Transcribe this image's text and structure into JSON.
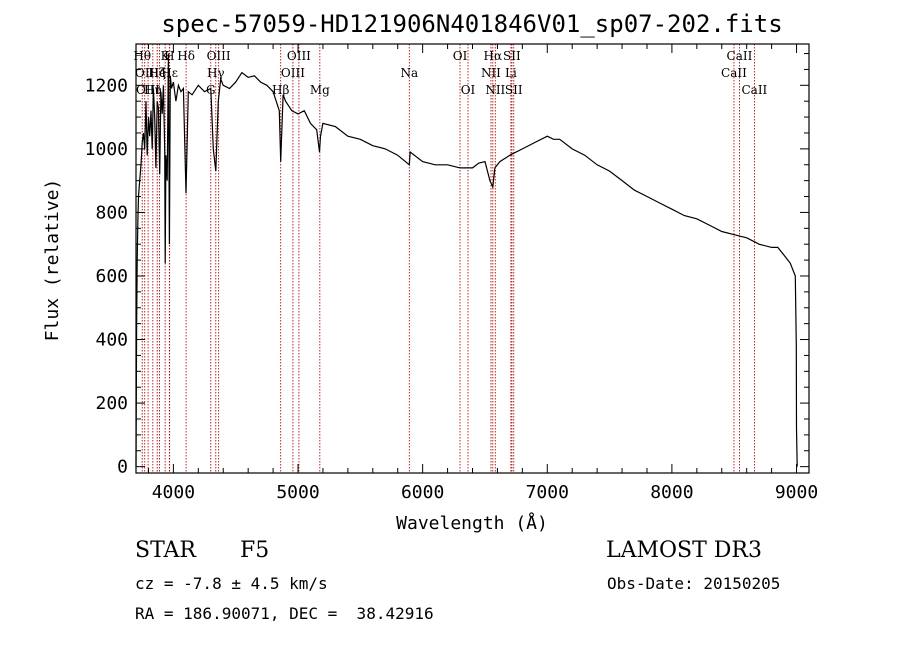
{
  "chart_data": {
    "type": "line",
    "title": "spec-57059-HD121906N401846V01_sp07-202.fits",
    "xlabel": "Wavelength (Å)",
    "ylabel": "Flux (relative)",
    "xlim": [
      3700,
      9100
    ],
    "ylim": [
      -20,
      1330
    ],
    "xticks": [
      4000,
      5000,
      6000,
      7000,
      8000,
      9000
    ],
    "yticks": [
      0,
      200,
      400,
      600,
      800,
      1000,
      1200
    ],
    "series": [
      {
        "name": "spectrum",
        "x": [
          3700,
          3705,
          3710,
          3715,
          3720,
          3730,
          3740,
          3750,
          3760,
          3770,
          3780,
          3790,
          3800,
          3810,
          3820,
          3830,
          3840,
          3850,
          3860,
          3870,
          3880,
          3890,
          3900,
          3910,
          3920,
          3930,
          3934,
          3940,
          3950,
          3960,
          3968,
          3975,
          3985,
          4000,
          4020,
          4040,
          4060,
          4080,
          4101,
          4120,
          4150,
          4200,
          4250,
          4300,
          4320,
          4340,
          4360,
          4380,
          4400,
          4450,
          4500,
          4550,
          4600,
          4650,
          4700,
          4750,
          4800,
          4850,
          4861,
          4880,
          4900,
          4950,
          5000,
          5050,
          5100,
          5150,
          5172,
          5180,
          5200,
          5300,
          5400,
          5500,
          5600,
          5700,
          5800,
          5893,
          5900,
          6000,
          6100,
          6200,
          6300,
          6400,
          6450,
          6500,
          6540,
          6563,
          6580,
          6620,
          6700,
          6800,
          6900,
          7000,
          7050,
          7100,
          7200,
          7300,
          7400,
          7500,
          7600,
          7700,
          7800,
          7900,
          8000,
          8100,
          8200,
          8300,
          8400,
          8500,
          8600,
          8700,
          8800,
          8850,
          8900,
          8950,
          8990,
          8998,
          9000,
          9005
        ],
        "y": [
          0,
          430,
          650,
          780,
          850,
          900,
          950,
          1020,
          1050,
          1000,
          1150,
          980,
          1100,
          1040,
          1120,
          1000,
          1190,
          1100,
          940,
          1150,
          1130,
          920,
          1180,
          1110,
          1200,
          1000,
          640,
          980,
          900,
          1300,
          700,
          1230,
          1190,
          1210,
          1150,
          1200,
          1180,
          1190,
          860,
          1180,
          1170,
          1200,
          1180,
          1190,
          1000,
          930,
          1150,
          1220,
          1200,
          1190,
          1210,
          1240,
          1225,
          1230,
          1210,
          1200,
          1180,
          1120,
          960,
          1170,
          1150,
          1120,
          1110,
          1120,
          1080,
          1060,
          990,
          1040,
          1080,
          1070,
          1040,
          1030,
          1010,
          1000,
          980,
          950,
          990,
          960,
          950,
          950,
          940,
          940,
          955,
          960,
          900,
          880,
          940,
          960,
          980,
          1000,
          1020,
          1040,
          1030,
          1030,
          1000,
          980,
          950,
          930,
          900,
          870,
          850,
          830,
          810,
          790,
          780,
          760,
          740,
          730,
          720,
          700,
          690,
          690,
          665,
          640,
          600,
          380,
          120,
          0
        ]
      }
    ],
    "line_markers": [
      {
        "wl": 3750,
        "label": "Hθ",
        "row": 0
      },
      {
        "wl": 3770,
        "label": "OII",
        "row": 1
      },
      {
        "wl": 3797,
        "label": "OIII",
        "row": 2
      },
      {
        "wl": 3835,
        "label": "Hη",
        "row": 2
      },
      {
        "wl": 3870,
        "label": "Hζ",
        "row": 1
      },
      {
        "wl": 3889,
        "label": "HeI",
        "row": 1
      },
      {
        "wl": 3934,
        "label": "K",
        "row": 0
      },
      {
        "wl": 3968,
        "label": "H",
        "row": 0
      },
      {
        "wl": 3970,
        "label": "Hε",
        "row": 1
      },
      {
        "wl": 4102,
        "label": "Hδ",
        "row": 0
      },
      {
        "wl": 4300,
        "label": "G",
        "row": 2
      },
      {
        "wl": 4340,
        "label": "Hγ",
        "row": 1
      },
      {
        "wl": 4363,
        "label": "OIII",
        "row": 0
      },
      {
        "wl": 4861,
        "label": "Hβ",
        "row": 2
      },
      {
        "wl": 4959,
        "label": "OIII",
        "row": 1
      },
      {
        "wl": 5007,
        "label": "OIII",
        "row": 0
      },
      {
        "wl": 5175,
        "label": "Mg",
        "row": 2
      },
      {
        "wl": 5893,
        "label": "Na",
        "row": 1
      },
      {
        "wl": 6300,
        "label": "OI",
        "row": 0
      },
      {
        "wl": 6364,
        "label": "OI",
        "row": 2
      },
      {
        "wl": 6548,
        "label": "NII",
        "row": 1
      },
      {
        "wl": 6563,
        "label": "Hα",
        "row": 0
      },
      {
        "wl": 6583,
        "label": "NII",
        "row": 2
      },
      {
        "wl": 6708,
        "label": "Li",
        "row": 1
      },
      {
        "wl": 6716,
        "label": "SII",
        "row": 0
      },
      {
        "wl": 6731,
        "label": "SII",
        "row": 2
      },
      {
        "wl": 8498,
        "label": "CaII",
        "row": 1
      },
      {
        "wl": 8542,
        "label": "CaII",
        "row": 0
      },
      {
        "wl": 8662,
        "label": "CaII",
        "row": 2
      }
    ]
  },
  "footer": {
    "object_class": "STAR",
    "subclass": "F5",
    "survey": "LAMOST DR3",
    "redshift": "cz = -7.8 ± 4.5 km/s",
    "obs_date": "Obs-Date: 20150205",
    "coords": "RA = 186.90071, DEC =  38.42916"
  },
  "colors": {
    "marker": "#b01010",
    "spectrum": "#000000"
  }
}
